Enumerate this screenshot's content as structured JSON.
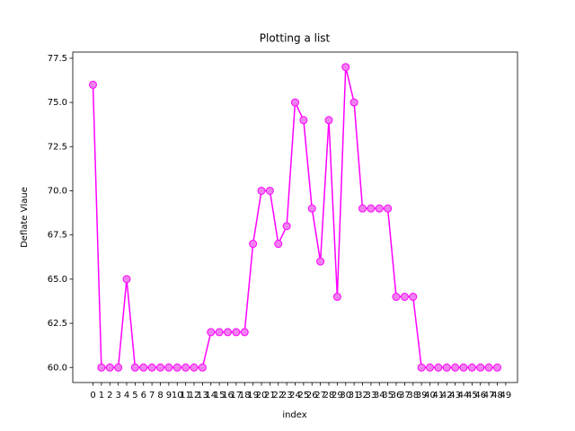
{
  "chart_data": {
    "type": "line",
    "title": "Plotting a list",
    "x_label": "index",
    "y_label": "Deflate Vlaue",
    "x": [
      0,
      1,
      2,
      3,
      4,
      5,
      6,
      7,
      8,
      9,
      10,
      11,
      12,
      13,
      14,
      15,
      16,
      17,
      18,
      19,
      20,
      21,
      22,
      23,
      24,
      25,
      26,
      27,
      28,
      29,
      30,
      31,
      32,
      33,
      34,
      35,
      36,
      37,
      38,
      39,
      40,
      41,
      42,
      43,
      44,
      45,
      46,
      47,
      48
    ],
    "series": [
      {
        "name": "Deflate Vlaue",
        "color": "#ff00ff",
        "marker": "circle",
        "marker_face_color": "#ee82ee",
        "values": [
          76,
          60,
          60,
          60,
          65,
          60,
          60,
          60,
          60,
          60,
          60,
          60,
          60,
          60,
          62,
          62,
          62,
          62,
          62,
          67,
          70,
          70,
          67,
          68,
          75,
          74,
          69,
          66,
          74,
          64,
          77,
          75,
          69,
          69,
          69,
          69,
          64,
          64,
          64,
          60,
          60,
          60,
          60,
          60,
          60,
          60,
          60,
          60,
          60
        ]
      }
    ],
    "xlim": [
      -2.4,
      50.4
    ],
    "xticks": [
      0,
      1,
      2,
      3,
      4,
      5,
      6,
      7,
      8,
      9,
      10,
      11,
      12,
      13,
      14,
      15,
      16,
      17,
      18,
      19,
      20,
      21,
      22,
      23,
      24,
      25,
      26,
      27,
      28,
      29,
      30,
      31,
      32,
      33,
      34,
      35,
      36,
      37,
      38,
      39,
      40,
      41,
      42,
      43,
      44,
      45,
      46,
      47,
      48,
      49
    ],
    "ylim": [
      59.15,
      77.85
    ],
    "yticks": [
      {
        "value": 60,
        "label": "60.0"
      },
      {
        "value": 62.5,
        "label": "62.5"
      },
      {
        "value": 65,
        "label": "65.0"
      },
      {
        "value": 67.5,
        "label": "67.5"
      },
      {
        "value": 70,
        "label": "70.0"
      },
      {
        "value": 72.5,
        "label": "72.5"
      },
      {
        "value": 75,
        "label": "75.0"
      },
      {
        "value": 77.5,
        "label": "77.5"
      }
    ]
  }
}
